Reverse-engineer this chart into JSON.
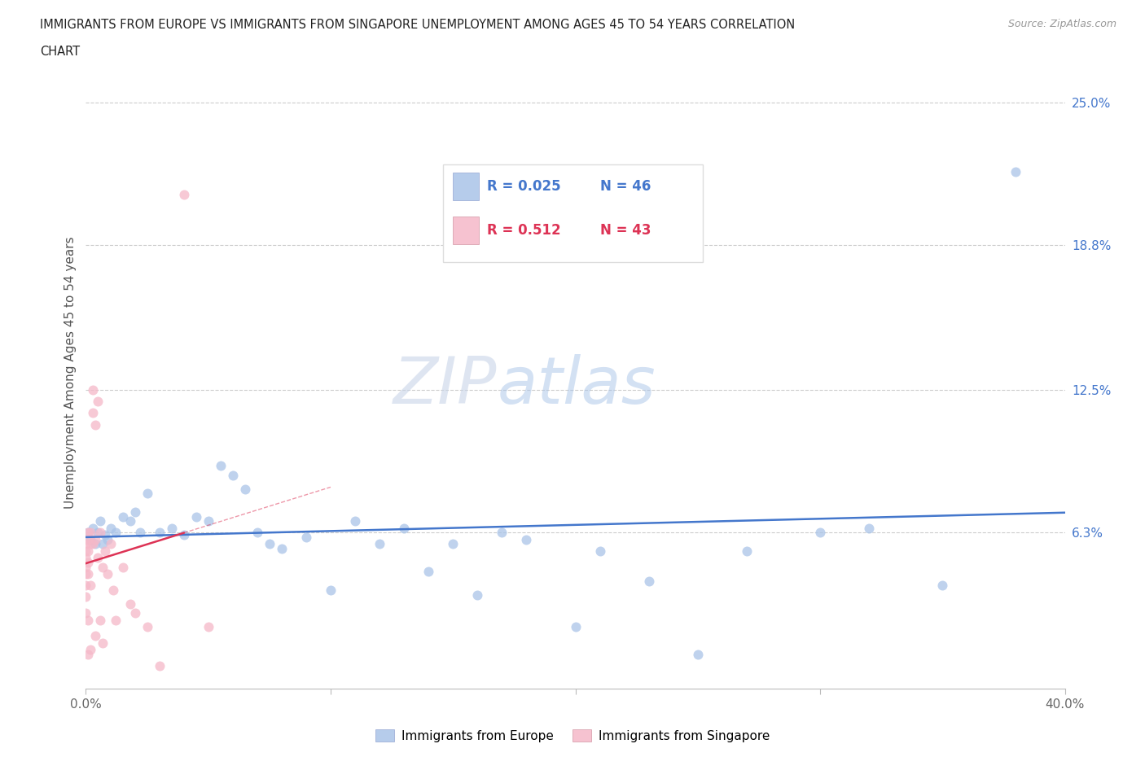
{
  "title_line1": "IMMIGRANTS FROM EUROPE VS IMMIGRANTS FROM SINGAPORE UNEMPLOYMENT AMONG AGES 45 TO 54 YEARS CORRELATION",
  "title_line2": "CHART",
  "source": "Source: ZipAtlas.com",
  "ylabel": "Unemployment Among Ages 45 to 54 years",
  "xlim": [
    0.0,
    0.4
  ],
  "ylim": [
    -0.005,
    0.27
  ],
  "xticks": [
    0.0,
    0.1,
    0.2,
    0.3,
    0.4
  ],
  "xticklabels": [
    "0.0%",
    "",
    "",
    "",
    "40.0%"
  ],
  "ytick_right_vals": [
    0.063,
    0.125,
    0.188,
    0.25
  ],
  "ytick_right_labels": [
    "6.3%",
    "12.5%",
    "18.8%",
    "25.0%"
  ],
  "grid_color": "#cccccc",
  "background_color": "#ffffff",
  "europe_color": "#aac4e8",
  "singapore_color": "#f5b8c8",
  "europe_line_color": "#4477cc",
  "singapore_line_color": "#dd3355",
  "R_europe": "0.025",
  "N_europe": "46",
  "R_singapore": "0.512",
  "N_singapore": "43",
  "legend_europe_label": "Immigrants from Europe",
  "legend_singapore_label": "Immigrants from Singapore",
  "europe_x": [
    0.001,
    0.002,
    0.003,
    0.004,
    0.005,
    0.006,
    0.007,
    0.008,
    0.009,
    0.01,
    0.012,
    0.015,
    0.018,
    0.02,
    0.022,
    0.025,
    0.03,
    0.035,
    0.04,
    0.045,
    0.05,
    0.055,
    0.06,
    0.065,
    0.07,
    0.075,
    0.08,
    0.09,
    0.1,
    0.11,
    0.12,
    0.13,
    0.14,
    0.15,
    0.16,
    0.17,
    0.18,
    0.2,
    0.21,
    0.23,
    0.25,
    0.27,
    0.3,
    0.32,
    0.35,
    0.38
  ],
  "europe_y": [
    0.063,
    0.06,
    0.065,
    0.058,
    0.063,
    0.068,
    0.058,
    0.062,
    0.06,
    0.065,
    0.063,
    0.07,
    0.068,
    0.072,
    0.063,
    0.08,
    0.063,
    0.065,
    0.062,
    0.07,
    0.068,
    0.092,
    0.088,
    0.082,
    0.063,
    0.058,
    0.056,
    0.061,
    0.038,
    0.068,
    0.058,
    0.065,
    0.046,
    0.058,
    0.036,
    0.063,
    0.06,
    0.022,
    0.055,
    0.042,
    0.01,
    0.055,
    0.063,
    0.065,
    0.04,
    0.22
  ],
  "singapore_x": [
    0.0,
    0.0,
    0.0,
    0.0,
    0.0,
    0.0,
    0.0,
    0.0,
    0.001,
    0.001,
    0.001,
    0.001,
    0.001,
    0.001,
    0.001,
    0.002,
    0.002,
    0.002,
    0.002,
    0.003,
    0.003,
    0.003,
    0.004,
    0.004,
    0.004,
    0.005,
    0.005,
    0.006,
    0.006,
    0.007,
    0.007,
    0.008,
    0.009,
    0.01,
    0.011,
    0.012,
    0.015,
    0.018,
    0.02,
    0.025,
    0.03,
    0.04,
    0.05
  ],
  "singapore_y": [
    0.058,
    0.055,
    0.052,
    0.048,
    0.045,
    0.04,
    0.035,
    0.028,
    0.063,
    0.06,
    0.055,
    0.05,
    0.045,
    0.025,
    0.01,
    0.063,
    0.058,
    0.04,
    0.012,
    0.125,
    0.115,
    0.058,
    0.11,
    0.06,
    0.018,
    0.12,
    0.052,
    0.063,
    0.025,
    0.048,
    0.015,
    0.055,
    0.045,
    0.058,
    0.038,
    0.025,
    0.048,
    0.032,
    0.028,
    0.022,
    0.005,
    0.21,
    0.022
  ]
}
